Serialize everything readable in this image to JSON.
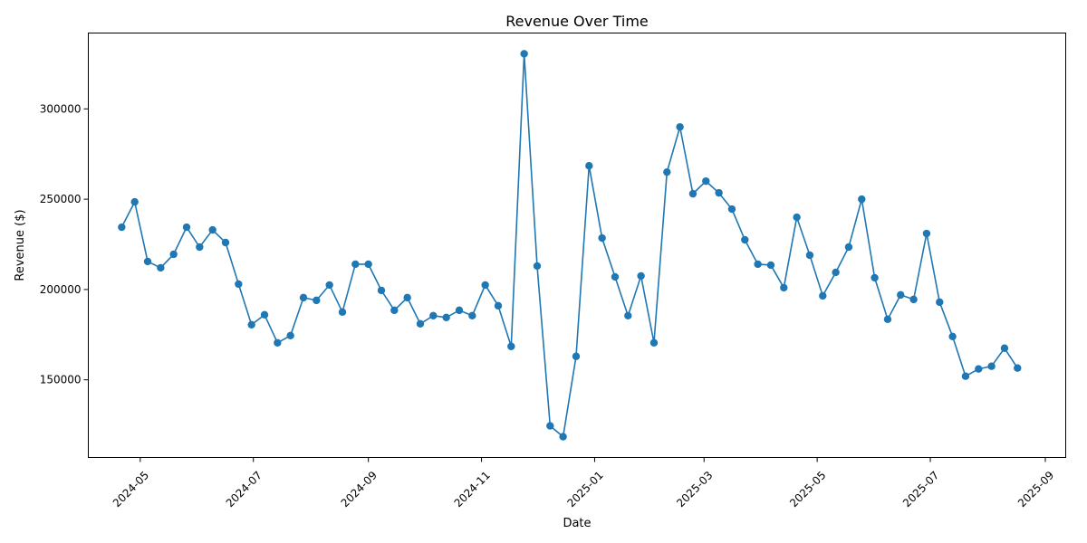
{
  "chart_data": {
    "type": "line",
    "title": "Revenue Over Time",
    "xlabel": "Date",
    "ylabel": "Revenue ($)",
    "marker": "circle",
    "color": "#1f77b4",
    "grid": false,
    "legend": "none",
    "xlim": [
      "2024-04-03",
      "2025-09-12"
    ],
    "ylim": [
      107000,
      342000
    ],
    "x_ticks": [
      {
        "date": "2024-05-01",
        "label": "2024-05"
      },
      {
        "date": "2024-07-01",
        "label": "2024-07"
      },
      {
        "date": "2024-09-01",
        "label": "2024-09"
      },
      {
        "date": "2024-11-01",
        "label": "2024-11"
      },
      {
        "date": "2025-01-01",
        "label": "2025-01"
      },
      {
        "date": "2025-03-01",
        "label": "2025-03"
      },
      {
        "date": "2025-05-01",
        "label": "2025-05"
      },
      {
        "date": "2025-07-01",
        "label": "2025-07"
      },
      {
        "date": "2025-09-01",
        "label": "2025-09"
      }
    ],
    "y_ticks": [
      {
        "value": 150000,
        "label": "150000"
      },
      {
        "value": 200000,
        "label": "200000"
      },
      {
        "value": 250000,
        "label": "250000"
      },
      {
        "value": 300000,
        "label": "300000"
      }
    ],
    "x": [
      "2024-04-21",
      "2024-04-28",
      "2024-05-05",
      "2024-05-12",
      "2024-05-19",
      "2024-05-26",
      "2024-06-02",
      "2024-06-09",
      "2024-06-16",
      "2024-06-23",
      "2024-06-30",
      "2024-07-07",
      "2024-07-14",
      "2024-07-21",
      "2024-07-28",
      "2024-08-04",
      "2024-08-11",
      "2024-08-18",
      "2024-08-25",
      "2024-09-01",
      "2024-09-08",
      "2024-09-15",
      "2024-09-22",
      "2024-09-29",
      "2024-10-06",
      "2024-10-13",
      "2024-10-20",
      "2024-10-27",
      "2024-11-03",
      "2024-11-10",
      "2024-11-17",
      "2024-11-24",
      "2024-12-01",
      "2024-12-08",
      "2024-12-15",
      "2024-12-22",
      "2024-12-29",
      "2025-01-05",
      "2025-01-12",
      "2025-01-19",
      "2025-01-26",
      "2025-02-02",
      "2025-02-09",
      "2025-02-16",
      "2025-02-23",
      "2025-03-02",
      "2025-03-09",
      "2025-03-16",
      "2025-03-23",
      "2025-03-30",
      "2025-04-06",
      "2025-04-13",
      "2025-04-20",
      "2025-04-27",
      "2025-05-04",
      "2025-05-11",
      "2025-05-18",
      "2025-05-25",
      "2025-06-01",
      "2025-06-08",
      "2025-06-15",
      "2025-06-22",
      "2025-06-29",
      "2025-07-06",
      "2025-07-13",
      "2025-07-20",
      "2025-07-27",
      "2025-08-03",
      "2025-08-10",
      "2025-08-17"
    ],
    "values": [
      234500,
      248500,
      215500,
      212000,
      219500,
      234500,
      223500,
      233000,
      226000,
      203000,
      180500,
      186000,
      170500,
      174500,
      195500,
      194000,
      202500,
      187500,
      214000,
      214000,
      199500,
      188500,
      195500,
      181000,
      185500,
      184500,
      188500,
      185500,
      202500,
      191000,
      168500,
      330500,
      213000,
      124500,
      118500,
      163000,
      268500,
      228500,
      207000,
      185500,
      207500,
      170500,
      265000,
      290000,
      253000,
      260000,
      253500,
      244500,
      227500,
      214000,
      213500,
      201000,
      240000,
      219000,
      196500,
      209500,
      223500,
      250000,
      206500,
      183500,
      197000,
      194500,
      231000,
      193000,
      174000,
      152000,
      156000,
      157500,
      167500,
      156500
    ]
  }
}
